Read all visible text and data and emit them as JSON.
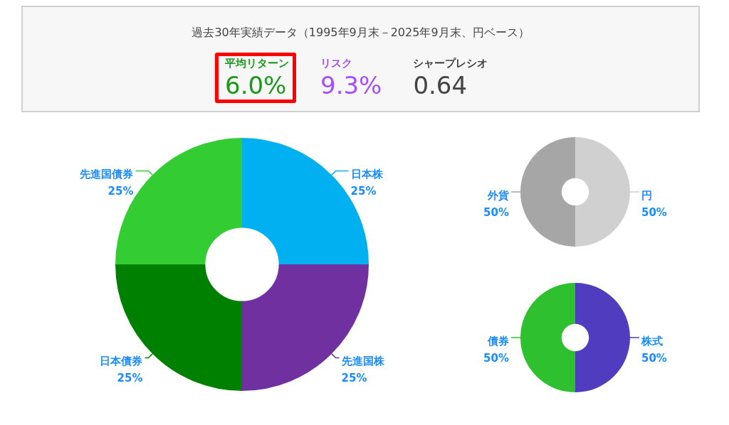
{
  "chart_data": [
    {
      "type": "other",
      "title": "過去30年実績データ（1995年9月末－2025年9月末、円ベース）",
      "annotations": [
        "平均リターン",
        "6.0%",
        "リスク",
        "9.3%",
        "シャープレシオ",
        "0.64"
      ]
    },
    {
      "type": "donut",
      "categories": [
        "日本株",
        "先進国株",
        "日本債券",
        "先進国債券"
      ],
      "values": [
        25,
        25,
        25,
        25
      ],
      "value_labels": [
        "25%",
        "25%",
        "25%",
        "25%"
      ],
      "colors": [
        "#00b0f0",
        "#7030a0",
        "#008000",
        "#33cc33"
      ]
    },
    {
      "type": "donut",
      "categories": [
        "円",
        "外貨"
      ],
      "values": [
        50,
        50
      ],
      "value_labels": [
        "50%",
        "50%"
      ],
      "colors": [
        "#d0d0d0",
        "#a6a6a6"
      ]
    },
    {
      "type": "donut",
      "categories": [
        "株式",
        "債券"
      ],
      "values": [
        50,
        50
      ],
      "value_labels": [
        "50%",
        "50%"
      ],
      "colors": [
        "#4f3cbf",
        "#2ec02e"
      ]
    }
  ]
}
